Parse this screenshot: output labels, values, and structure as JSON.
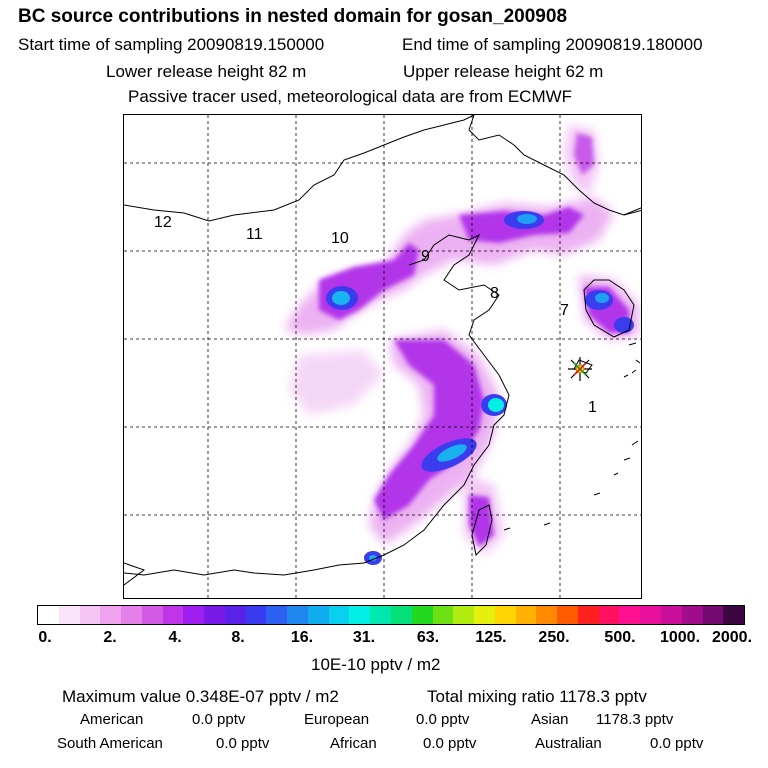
{
  "header": {
    "title": "BC  source contributions in nested domain for gosan_200908",
    "start_label": "Start time of sampling 20090819.150000",
    "end_label": "End time of sampling 20090819.180000",
    "lower_label": "Lower release height   82 m",
    "upper_label": "Upper release height   62 m",
    "note": "Passive tracer used, meteorological data are from ECMWF"
  },
  "map": {
    "region_labels": [
      "12",
      "11",
      "10",
      "9",
      "8",
      "7",
      "1"
    ],
    "receptor_icon": "star-burst-icon"
  },
  "colorbar": {
    "colors": [
      "#ffffff",
      "#fbe3fb",
      "#f5c5f5",
      "#efa3ef",
      "#e57fe9",
      "#d35ae5",
      "#c034ea",
      "#a11ef0",
      "#7a1ae8",
      "#5a22e8",
      "#3a3af0",
      "#2b60f2",
      "#1e88f0",
      "#12acf0",
      "#08d0ee",
      "#00f0e6",
      "#00e8b0",
      "#06e07a",
      "#22d820",
      "#6ee016",
      "#b0ec10",
      "#e6f00e",
      "#ffd400",
      "#ffb000",
      "#ff8a00",
      "#ff5a00",
      "#ff2020",
      "#ff1060",
      "#ff1090",
      "#e8109a",
      "#c80e9a",
      "#a00c8c",
      "#720a70",
      "#3e0640"
    ],
    "tick_labels": [
      "0.",
      "2.",
      "4.",
      "8.",
      "16.",
      "31.",
      "63.",
      "125.",
      "250.",
      "500.",
      "1000.",
      "2000."
    ],
    "unit": "10E-10 pptv / m2"
  },
  "stats": {
    "max_label": "Maximum value  0.348E-07 pptv / m2",
    "total_label": "Total mixing ratio     1178.3 pptv",
    "american": "American",
    "american_val": "0.0 pptv",
    "european": "European",
    "european_val": "0.0 pptv",
    "asian": "Asian",
    "asian_val": "1178.3 pptv",
    "south_american": "South American",
    "south_american_val": "0.0 pptv",
    "african": "African",
    "african_val": "0.0 pptv",
    "australian": "Australian",
    "australian_val": "0.0 pptv"
  }
}
